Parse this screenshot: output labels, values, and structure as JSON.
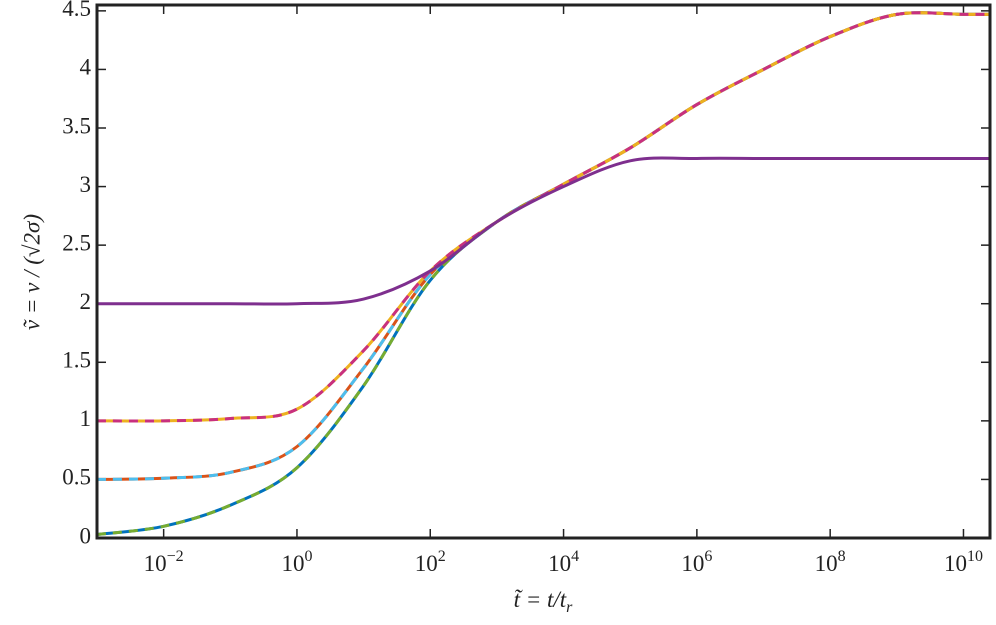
{
  "chart_data": {
    "type": "line",
    "xlabel": "t̃ = t/t",
    "xlabel_sub": "r",
    "ylabel": "ṽ = v / (√2σ)",
    "x": [
      0.001,
      0.01,
      0.1,
      1,
      10,
      100,
      1000,
      10000,
      100000,
      1000000,
      10000000,
      100000000,
      1000000000,
      10000000000,
      25000000000
    ],
    "series": [
      {
        "color": "#0072BD",
        "dash": false,
        "values": [
          0.03,
          0.1,
          0.28,
          0.6,
          1.3,
          2.2,
          2.7,
          3.02,
          3.33,
          3.7,
          4.0,
          4.28,
          4.47,
          4.47,
          4.47
        ]
      },
      {
        "color": "#77AC30",
        "dash": true,
        "values": [
          0.03,
          0.1,
          0.28,
          0.6,
          1.3,
          2.2,
          2.7,
          3.02,
          3.33,
          3.7,
          4.0,
          4.28,
          4.47,
          4.47,
          4.47
        ]
      },
      {
        "color": "#D95319",
        "dash": false,
        "values": [
          0.5,
          0.51,
          0.56,
          0.78,
          1.45,
          2.25,
          2.7,
          3.02,
          3.33,
          3.7,
          4.0,
          4.28,
          4.47,
          4.47,
          4.47
        ]
      },
      {
        "color": "#4DBEEE",
        "dash": true,
        "values": [
          0.5,
          0.51,
          0.56,
          0.78,
          1.45,
          2.25,
          2.7,
          3.02,
          3.33,
          3.7,
          4.0,
          4.28,
          4.47,
          4.47,
          4.47
        ]
      },
      {
        "color": "#EDB120",
        "dash": false,
        "values": [
          1.0,
          1.0,
          1.02,
          1.1,
          1.6,
          2.28,
          2.7,
          3.02,
          3.33,
          3.7,
          4.0,
          4.28,
          4.47,
          4.47,
          4.47
        ]
      },
      {
        "color": "#C8307F",
        "dash": true,
        "values": [
          1.0,
          1.0,
          1.02,
          1.1,
          1.6,
          2.28,
          2.7,
          3.02,
          3.33,
          3.7,
          4.0,
          4.28,
          4.47,
          4.47,
          4.47
        ]
      },
      {
        "color": "#7E2F8E",
        "dash": false,
        "values": [
          2.0,
          2.0,
          2.0,
          2.0,
          2.04,
          2.28,
          2.7,
          3.0,
          3.22,
          3.24,
          3.24,
          3.24,
          3.24,
          3.24,
          3.24
        ]
      }
    ],
    "xscale": "log",
    "xlim": [
      0.001,
      25000000000
    ],
    "ylim": [
      0,
      4.55
    ],
    "xticks": [
      {
        "value": 0.01,
        "label": "10^−2"
      },
      {
        "value": 1,
        "label": "10^0"
      },
      {
        "value": 100,
        "label": "10^2"
      },
      {
        "value": 10000,
        "label": "10^4"
      },
      {
        "value": 1000000,
        "label": "10^6"
      },
      {
        "value": 100000000,
        "label": "10^8"
      },
      {
        "value": 10000000000,
        "label": "10^10"
      }
    ],
    "yticks": [
      0,
      0.5,
      1,
      1.5,
      2,
      2.5,
      3,
      3.5,
      4,
      4.5
    ]
  }
}
